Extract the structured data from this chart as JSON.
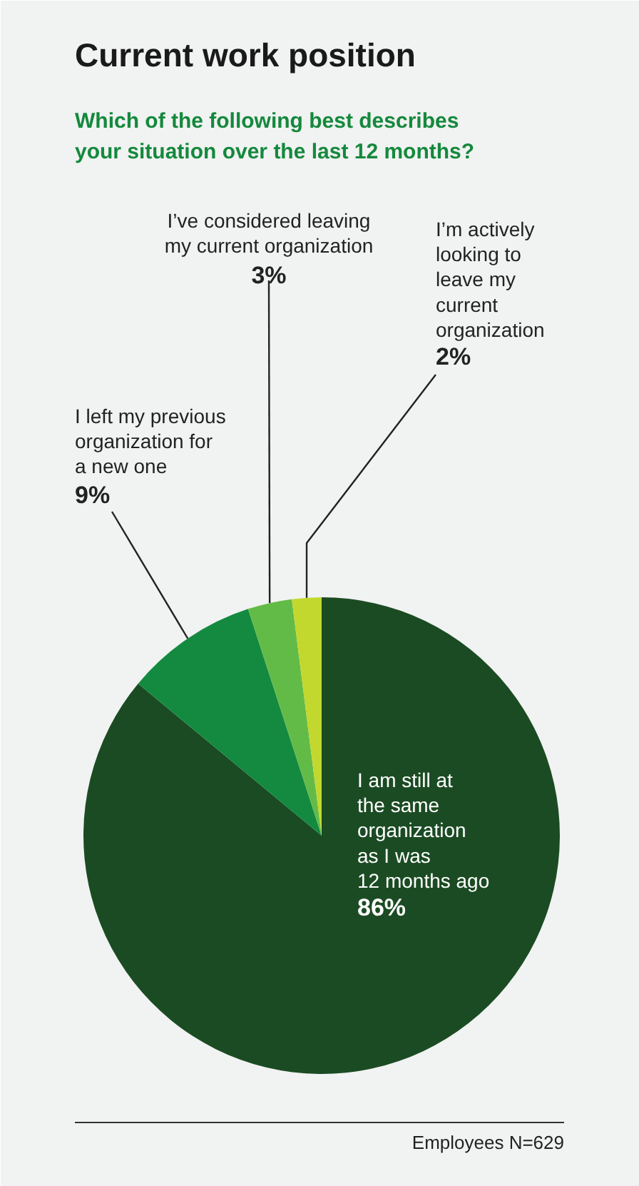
{
  "chart_data": {
    "type": "pie",
    "title": "Current work position",
    "subtitle": "Which of the following best describes\nyour situation over the last 12 months?",
    "categories": [
      "I am still at\nthe same\norganization\nas I was\n12 months ago",
      "I left my previous\norganization for\na new one",
      "I’ve considered leaving\nmy current organization",
      "I’m actively\nlooking to\nleave my\ncurrent\norganization"
    ],
    "values": [
      86,
      9,
      3,
      2
    ],
    "colors": [
      "#1b4b23",
      "#138a40",
      "#63bb47",
      "#c2d82e"
    ],
    "value_labels": [
      "86%",
      "9%",
      "3%",
      "2%"
    ],
    "annotations": [
      "Employees N=629"
    ]
  }
}
